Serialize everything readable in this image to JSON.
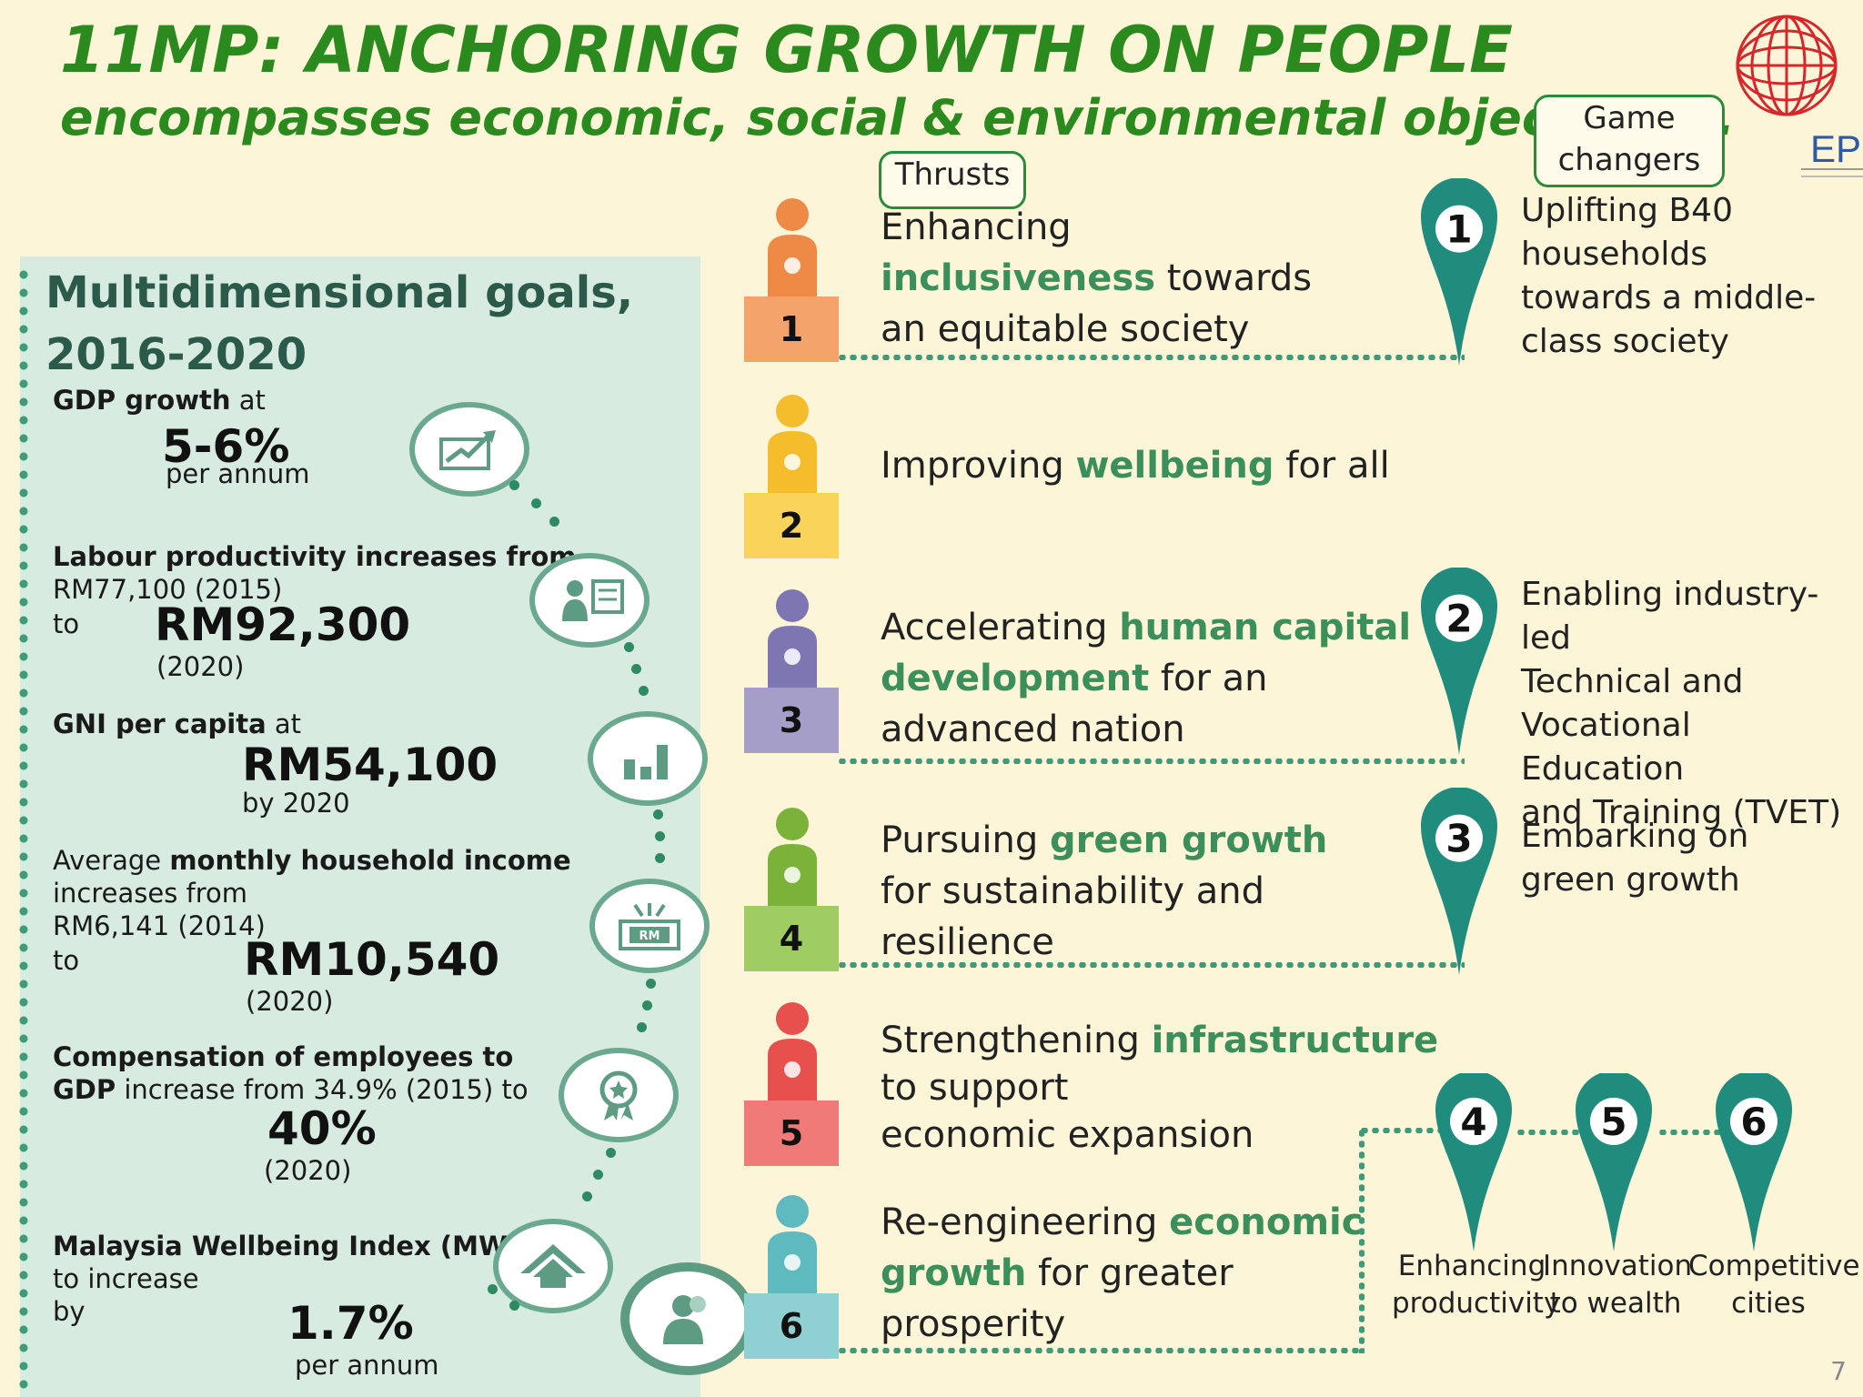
{
  "header": {
    "title": "11MP: ANCHORING GROWTH ON PEOPLE",
    "subtitle": "encompasses economic, social & environmental objectives…"
  },
  "logo": {
    "text": "EPU"
  },
  "tags": {
    "thrusts": "Thrusts",
    "game_changers_1": "Game",
    "game_changers_2": "changers"
  },
  "goals": {
    "title_line1": "Multidimensional goals,",
    "title_line2": "2016-2020",
    "gdp": {
      "label_bold": "GDP growth",
      "label_rest": " at",
      "value": "5-6%",
      "note": "per annum"
    },
    "labour": {
      "label_bold": "Labour productivity increases from",
      "line2": "RM77,100 (2015)",
      "to": "to",
      "value": "RM92,300",
      "note": "(2020)"
    },
    "gni": {
      "label_bold": "GNI per capita",
      "label_rest": " at",
      "value": "RM54,100",
      "note": "by 2020"
    },
    "income": {
      "label_pre": "Average ",
      "label_bold": "monthly household income",
      "line2": "increases from",
      "line3": "RM6,141 (2014)",
      "to": "to",
      "value": "RM10,540",
      "note": "(2020)"
    },
    "comp": {
      "label_bold": "Compensation of employees to",
      "line2_bold": "GDP",
      "line2_rest": " increase from 34.9% (2015) to",
      "value": "40%",
      "note": "(2020)"
    },
    "mwi": {
      "label_bold": "Malaysia Wellbeing Index (MWI)",
      "line2": "to increase",
      "line3": "by",
      "value": "1.7%",
      "note": "per annum"
    }
  },
  "thrusts": [
    {
      "num": "1",
      "color": "#f4a36b",
      "fig": "#ee8a45",
      "l1a": "Enhancing",
      "l2a": "inclusiveness",
      "l2b": " towards",
      "l3a": "an equitable society"
    },
    {
      "num": "2",
      "color": "#f9d35a",
      "fig": "#f5bc2c",
      "l1a": "Improving ",
      "l1g": "wellbeing",
      "l1b": " for all"
    },
    {
      "num": "3",
      "color": "#a49ec8",
      "fig": "#7d76b3",
      "l1a": "Accelerating ",
      "l1g": "human capital",
      "l2g": "development",
      "l2b": " for an",
      "l3a": "advanced nation"
    },
    {
      "num": "4",
      "color": "#9fcc63",
      "fig": "#7bb33a",
      "l1a": "Pursuing ",
      "l1g": "green growth",
      "l2a": "for sustainability and",
      "l3a": "resilience"
    },
    {
      "num": "5",
      "color": "#ef7a78",
      "fig": "#e8504e",
      "l1a": "Strengthening ",
      "l1g": "infrastructure",
      "l2a": "to support",
      "l3a": "economic expansion"
    },
    {
      "num": "6",
      "color": "#8fd0d3",
      "fig": "#5fbac0",
      "l1a": "Re-engineering ",
      "l1g": "economic",
      "l2g": "growth",
      "l2b": " for greater",
      "l3a": "prosperity"
    }
  ],
  "game_changers": [
    {
      "num": "1",
      "lines": [
        "Uplifting B40",
        "households",
        "towards  a middle-",
        "class  society"
      ]
    },
    {
      "num": "2",
      "lines": [
        "Enabling industry-led",
        "Technical and",
        "Vocational Education",
        "and Training (TVET)"
      ]
    },
    {
      "num": "3",
      "lines": [
        "Embarking on",
        "green growth"
      ]
    },
    {
      "num": "4",
      "lines": [
        "Enhancing",
        "productivity"
      ]
    },
    {
      "num": "5",
      "lines": [
        "Innovation",
        "to wealth"
      ]
    },
    {
      "num": "6",
      "lines": [
        "Competitive",
        "cities"
      ]
    }
  ],
  "icons": [
    "chart-up-icon",
    "presenter-icon",
    "bar-chart-icon",
    "rm-money-icon",
    "award-badge-icon",
    "house-icon",
    "person-icon"
  ],
  "colors": {
    "title_green": "#2b8a1e",
    "pin_teal": "#1f8c7e",
    "accent_green": "#3a8f5a",
    "panel_bg": "#d7ebe1"
  },
  "page_number": "7"
}
